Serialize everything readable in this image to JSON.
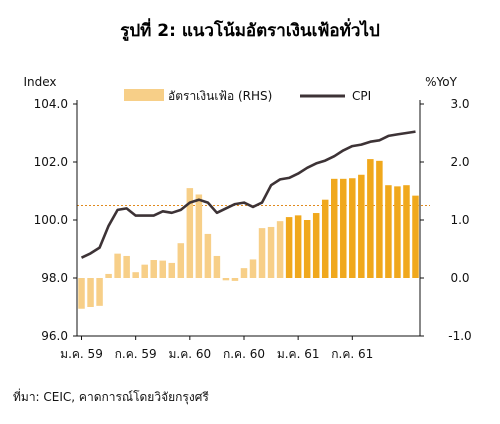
{
  "chart_data": {
    "type": "bar+line",
    "title": "รูปที่ 2: แนวโน้มอัตราเงินเฟ้อทั่วไป",
    "left_axis_label": "Index",
    "right_axis_label": "%YoY",
    "left_ticks": [
      "104.0",
      "102.0",
      "100.0",
      "98.0",
      "96.0"
    ],
    "right_ticks": [
      "3.0",
      "2.0",
      "1.0",
      "0.0",
      "-1.0"
    ],
    "left_range": [
      96,
      104
    ],
    "right_range": [
      -1,
      3
    ],
    "x_ticks": [
      "ม.ค. 59",
      "ก.ค. 59",
      "ม.ค. 60",
      "ก.ค. 60",
      "ม.ค. 61",
      "ก.ค. 61"
    ],
    "x_tick_months": [
      0,
      6,
      12,
      18,
      24,
      30
    ],
    "reference_line": 1.25,
    "source": "ที่มา: CEIC, คาดการณ์โดยวิจัยกรุงศรี",
    "legend": [
      {
        "label": "อัตราเงินเฟ้อ (RHS)",
        "kind": "bar"
      },
      {
        "label": "CPI",
        "kind": "line"
      }
    ],
    "colors": {
      "bar_actual": "#f7cf88",
      "bar_forecast": "#f0a81c",
      "line": "#3d3336",
      "reference": "#e08a1e",
      "axis": "#111111"
    },
    "forecast_start_index": 23,
    "series": [
      {
        "name": "อัตราเงินเฟ้อ (RHS)",
        "axis": "right",
        "values": [
          -0.53,
          -0.5,
          -0.48,
          0.07,
          0.42,
          0.38,
          0.1,
          0.23,
          0.31,
          0.3,
          0.26,
          0.6,
          1.55,
          1.44,
          0.76,
          0.38,
          -0.04,
          -0.05,
          0.17,
          0.32,
          0.86,
          0.88,
          0.98,
          1.05,
          1.08,
          1.0,
          1.12,
          1.35,
          1.71,
          1.71,
          1.72,
          1.78,
          2.05,
          2.02,
          1.6,
          1.58,
          1.6,
          1.42
        ]
      },
      {
        "name": "CPI",
        "axis": "left",
        "values": [
          98.7,
          98.85,
          99.05,
          99.8,
          100.35,
          100.4,
          100.15,
          100.15,
          100.15,
          100.3,
          100.25,
          100.35,
          100.6,
          100.7,
          100.6,
          100.25,
          100.4,
          100.55,
          100.6,
          100.45,
          100.6,
          101.2,
          101.4,
          101.45,
          101.6,
          101.8,
          101.95,
          102.05,
          102.2,
          102.4,
          102.55,
          102.6,
          102.7,
          102.75,
          102.9,
          102.95,
          103.0,
          103.05
        ]
      }
    ]
  }
}
